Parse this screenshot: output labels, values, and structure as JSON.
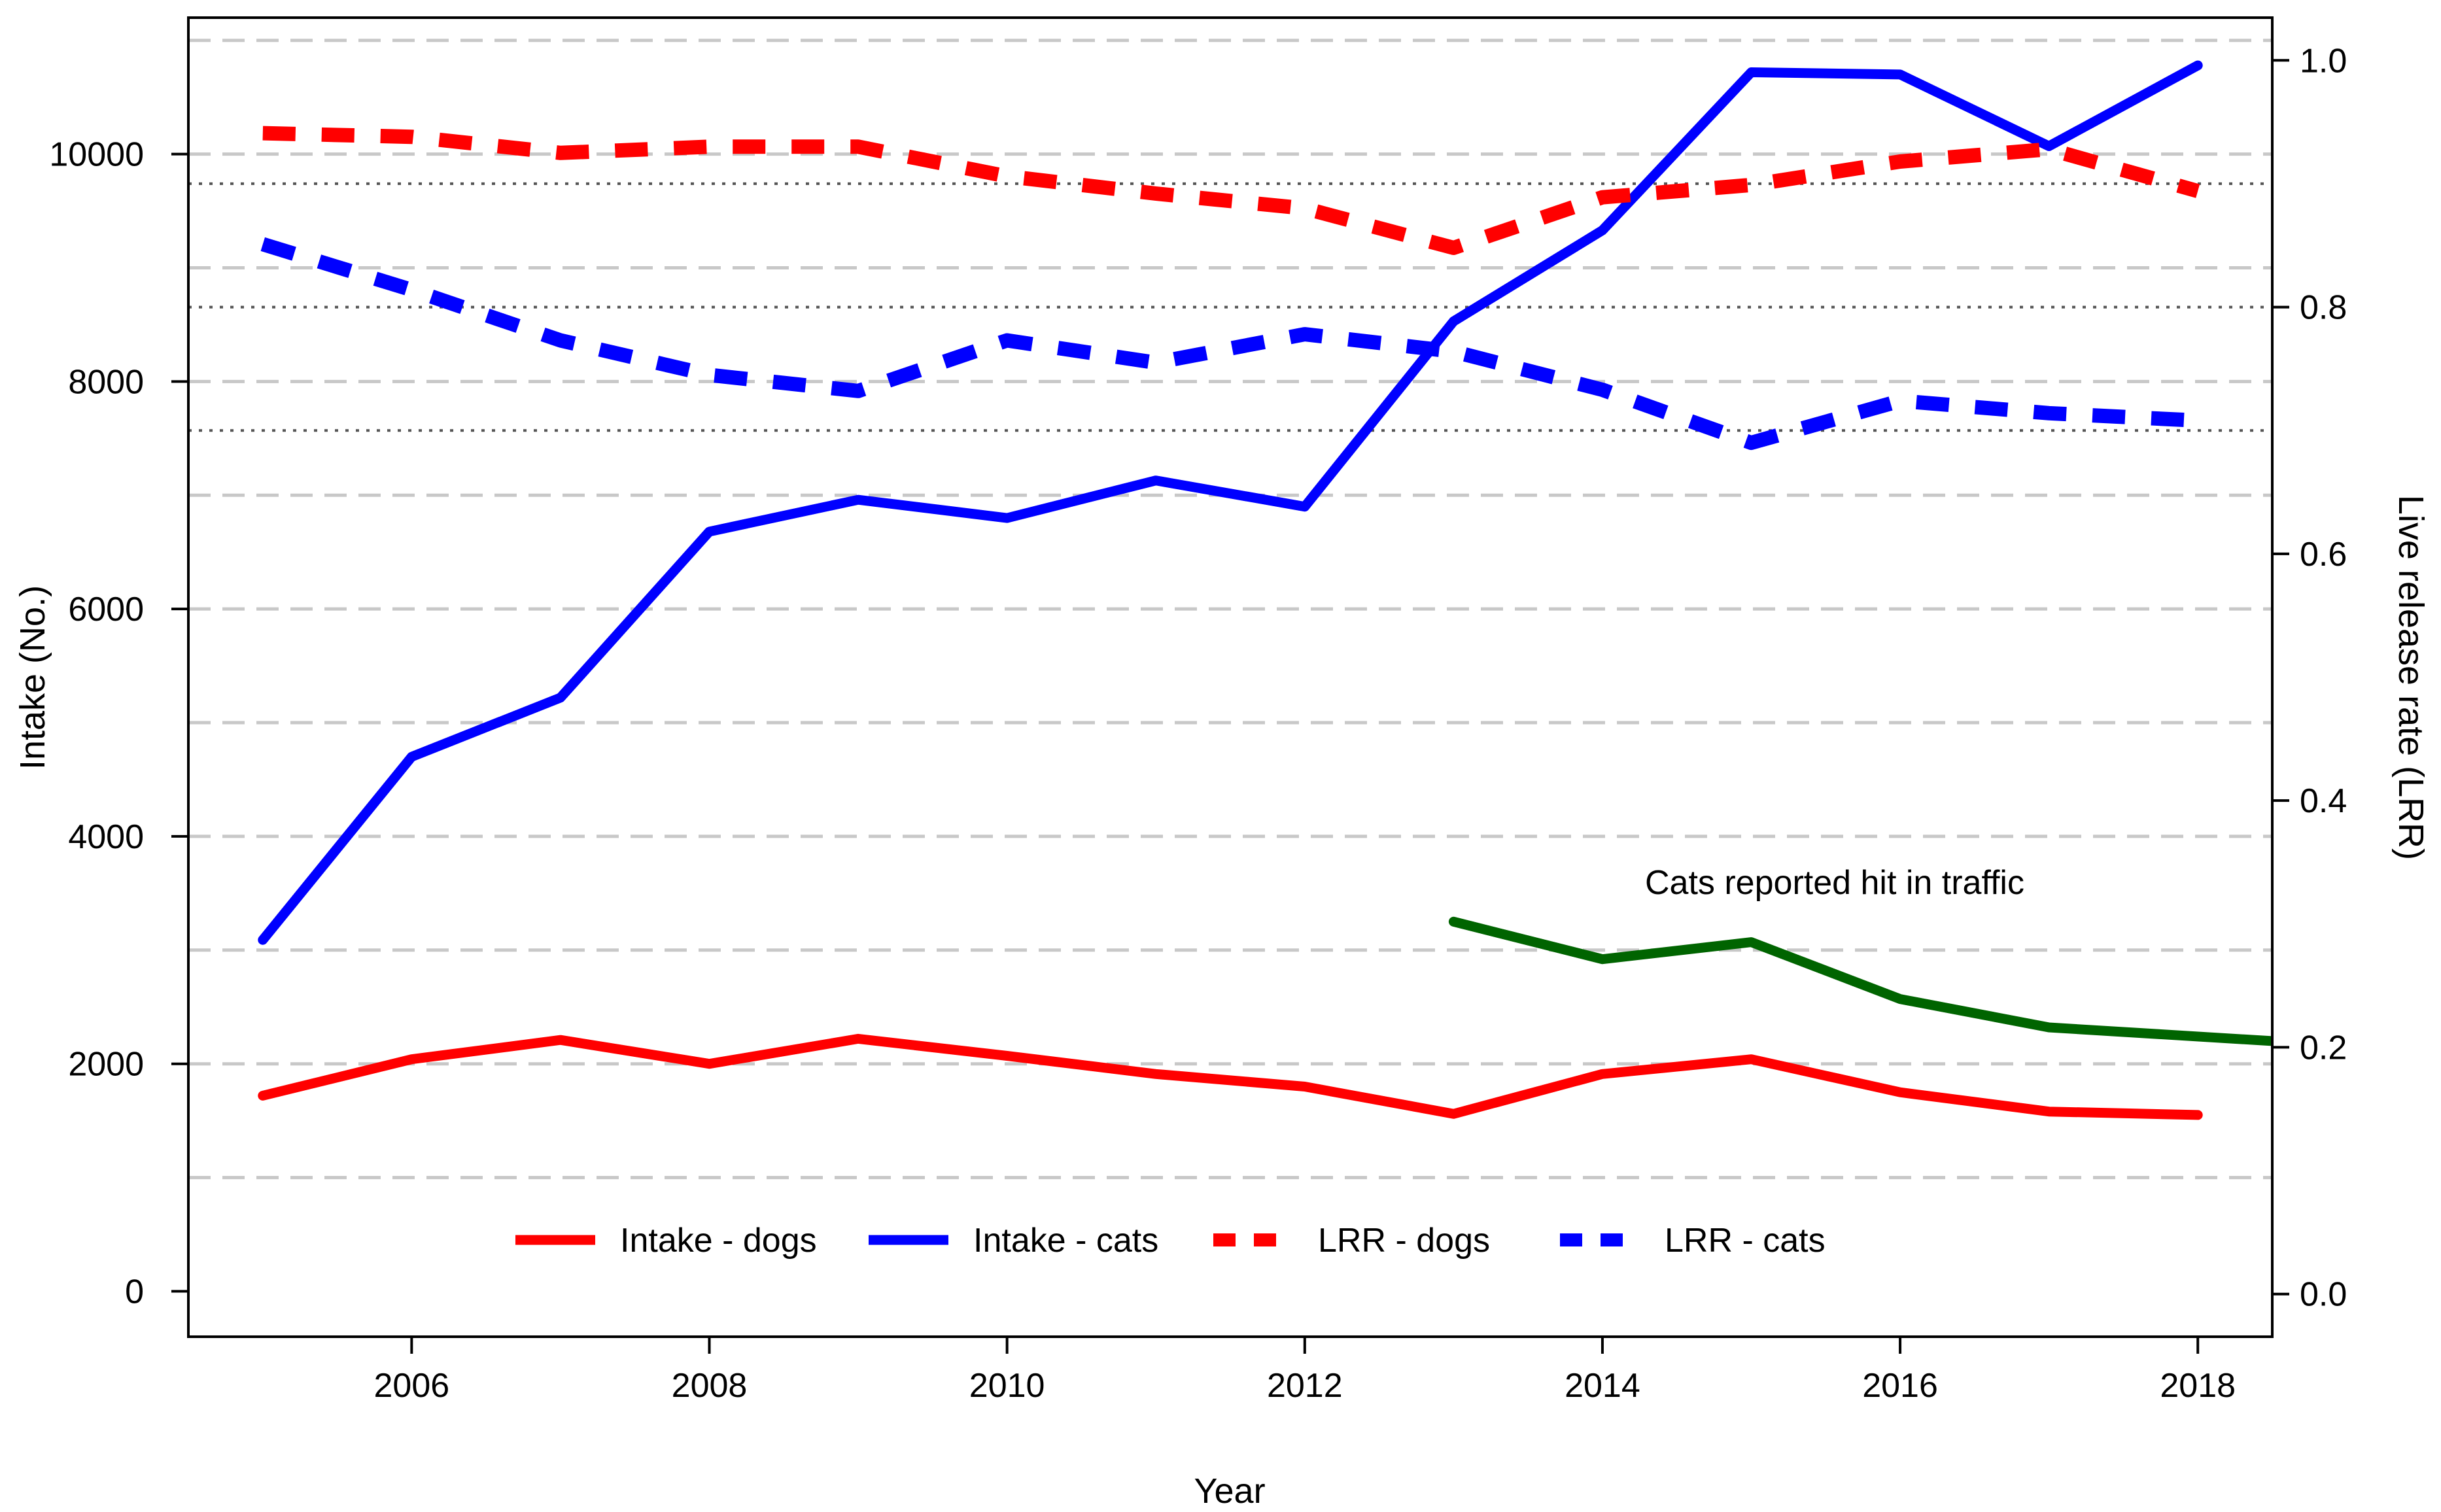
{
  "chart_data": {
    "type": "line",
    "title": "",
    "xlabel": "Year",
    "ylabel": "Intake (No.)",
    "y2label": "Live release rate (LRR)",
    "xlim": [
      2004.5,
      2018.5
    ],
    "ylim": [
      -400,
      11200
    ],
    "y2lim": [
      -0.0346,
      1.0346
    ],
    "x_ticks": [
      2006,
      2008,
      2010,
      2012,
      2014,
      2016,
      2018
    ],
    "x_tick_labels": [
      "2006",
      "2008",
      "2010",
      "2012",
      "2014",
      "2016",
      "2018"
    ],
    "y_ticks": [
      0,
      2000,
      4000,
      6000,
      8000,
      10000
    ],
    "y_tick_labels": [
      "0",
      "2000",
      "4000",
      "6000",
      "8000",
      "10000"
    ],
    "y2_ticks": [
      0.0,
      0.2,
      0.4,
      0.6,
      0.8,
      1.0
    ],
    "y2_tick_labels": [
      "0.0",
      "0.2",
      "0.4",
      "0.6",
      "0.8",
      "1.0"
    ],
    "gridlines_dashed_intake": [
      1000,
      2000,
      3000,
      4000,
      5000,
      6000,
      7000,
      8000,
      9000,
      10000,
      11000
    ],
    "reference_lines_dotted_lrr": [
      0.7,
      0.8,
      0.9
    ],
    "grid": true,
    "legend_position": "bottom",
    "annotation": "Cats reported hit in traffic",
    "series": [
      {
        "name": "Intake - dogs",
        "axis": "left",
        "style": "solid",
        "color": "#ff0000",
        "in_legend": true,
        "x": [
          2005,
          2006,
          2007,
          2008,
          2009,
          2010,
          2011,
          2012,
          2013,
          2014,
          2015,
          2016,
          2017,
          2018
        ],
        "values": [
          1720,
          2040,
          2210,
          2000,
          2220,
          2070,
          1910,
          1800,
          1560,
          1910,
          2040,
          1750,
          1580,
          1550
        ]
      },
      {
        "name": "Intake - cats",
        "axis": "left",
        "style": "solid",
        "color": "#0000ff",
        "in_legend": true,
        "x": [
          2005,
          2006,
          2007,
          2008,
          2009,
          2010,
          2011,
          2012,
          2013,
          2014,
          2015,
          2016,
          2017,
          2018
        ],
        "values": [
          3090,
          4700,
          5220,
          6680,
          6960,
          6800,
          7130,
          6900,
          8530,
          9330,
          10720,
          10700,
          10070,
          10780
        ]
      },
      {
        "name": "LRR - dogs",
        "axis": "right",
        "style": "dashed",
        "color": "#ff0000",
        "in_legend": true,
        "x": [
          2005,
          2006,
          2007,
          2008,
          2009,
          2010,
          2011,
          2012,
          2013,
          2014,
          2015,
          2016,
          2017,
          2018
        ],
        "values": [
          0.941,
          0.938,
          0.925,
          0.93,
          0.93,
          0.906,
          0.892,
          0.88,
          0.848,
          0.889,
          0.899,
          0.918,
          0.928,
          0.894
        ]
      },
      {
        "name": "LRR - cats",
        "axis": "right",
        "style": "dashed",
        "color": "#0000ff",
        "in_legend": true,
        "x": [
          2005,
          2006,
          2007,
          2008,
          2009,
          2010,
          2011,
          2012,
          2013,
          2014,
          2015,
          2016,
          2017,
          2018
        ],
        "values": [
          0.851,
          0.814,
          0.773,
          0.745,
          0.732,
          0.773,
          0.755,
          0.778,
          0.764,
          0.733,
          0.69,
          0.724,
          0.714,
          0.708
        ]
      },
      {
        "name": "Cats reported hit in traffic",
        "axis": "left",
        "style": "solid",
        "color": "#006400",
        "in_legend": false,
        "x": [
          2013,
          2014,
          2015,
          2016,
          2017,
          2018.5
        ],
        "values": [
          3250,
          2920,
          3070,
          2570,
          2320,
          2200
        ]
      }
    ]
  }
}
